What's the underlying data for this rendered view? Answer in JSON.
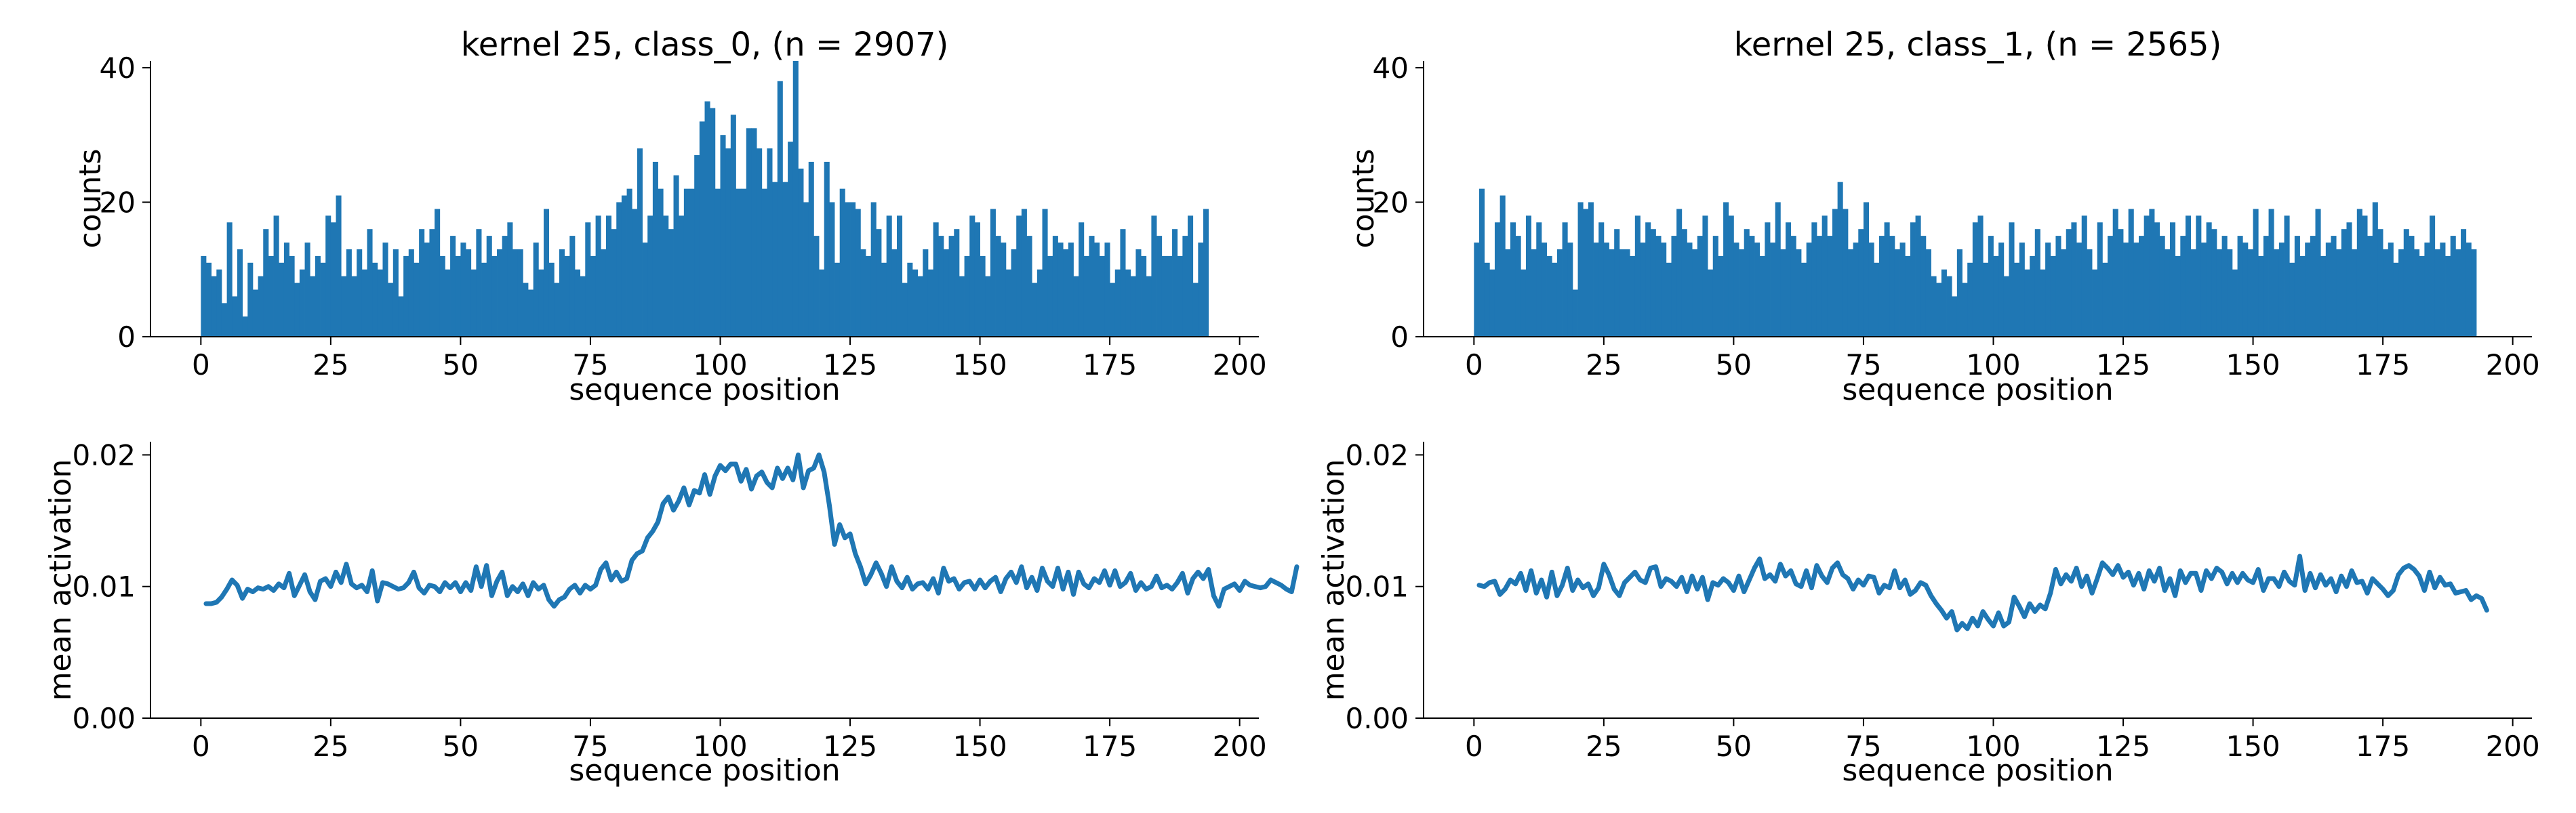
{
  "figure": {
    "colors": {
      "series": "#1f77b4",
      "axis": "#000000",
      "background": "#ffffff"
    }
  },
  "chart_data": [
    {
      "id": "hist-class0",
      "type": "bar",
      "title": "kernel 25, class_0, (n = 2907)",
      "xlabel": "sequence position",
      "ylabel": "counts",
      "xlim": [
        -9.7,
        203.7
      ],
      "ylim": [
        0,
        41
      ],
      "xticks": [
        0,
        25,
        50,
        75,
        100,
        125,
        150,
        175,
        200
      ],
      "yticks": [
        0,
        20,
        40
      ],
      "grid": false,
      "x_start": 0,
      "values": [
        12,
        11,
        9,
        10,
        5,
        17,
        6,
        13,
        3,
        11,
        7,
        9,
        16,
        12,
        18,
        11,
        14,
        12,
        8,
        10,
        14,
        9,
        12,
        11,
        18,
        17,
        21,
        9,
        13,
        9,
        13,
        10,
        16,
        11,
        10,
        14,
        8,
        13,
        6,
        12,
        13,
        11,
        16,
        14,
        16,
        19,
        12,
        10,
        15,
        12,
        14,
        13,
        10,
        16,
        11,
        15,
        12,
        13,
        15,
        17,
        13,
        13,
        8,
        7,
        14,
        10,
        19,
        11,
        8,
        13,
        12,
        15,
        10,
        9,
        17,
        12,
        18,
        13,
        18,
        16,
        20,
        21,
        22,
        19,
        28,
        14,
        18,
        26,
        22,
        18,
        16,
        24,
        18,
        22,
        22,
        27,
        32,
        35,
        34,
        22,
        30,
        28,
        33,
        22,
        22,
        31,
        31,
        28,
        22,
        28,
        23,
        38,
        23,
        29,
        41,
        25,
        20,
        26,
        15,
        10,
        26,
        20,
        11,
        22,
        20,
        20,
        19,
        13,
        12,
        20,
        16,
        11,
        18,
        13,
        18,
        8,
        11,
        10,
        9,
        13,
        10,
        17,
        15,
        13,
        15,
        16,
        9,
        12,
        18,
        17,
        12,
        9,
        19,
        15,
        14,
        10,
        13,
        18,
        19,
        15,
        8,
        10,
        19,
        12,
        15,
        14,
        13,
        14,
        9,
        17,
        12,
        15,
        14,
        12,
        14,
        8,
        10,
        16,
        10,
        9,
        13,
        12,
        9,
        18,
        15,
        12,
        12,
        16,
        12,
        15,
        18,
        8,
        14,
        19
      ]
    },
    {
      "id": "hist-class1",
      "type": "bar",
      "title": "kernel 25, class_1, (n = 2565)",
      "xlabel": "sequence position",
      "ylabel": "counts",
      "xlim": [
        -9.7,
        203.7
      ],
      "ylim": [
        0,
        41
      ],
      "xticks": [
        0,
        25,
        50,
        75,
        100,
        125,
        150,
        175,
        200
      ],
      "yticks": [
        0,
        20,
        40
      ],
      "grid": false,
      "x_start": 0,
      "values": [
        14,
        22,
        11,
        10,
        17,
        21,
        13,
        17,
        15,
        10,
        18,
        13,
        17,
        14,
        12,
        11,
        13,
        17,
        14,
        7,
        20,
        19,
        20,
        14,
        17,
        14,
        13,
        16,
        13,
        13,
        12,
        18,
        14,
        17,
        16,
        15,
        14,
        11,
        15,
        19,
        16,
        14,
        13,
        15,
        18,
        10,
        15,
        12,
        20,
        18,
        14,
        13,
        16,
        15,
        14,
        12,
        17,
        14,
        20,
        13,
        17,
        15,
        13,
        11,
        14,
        17,
        15,
        18,
        15,
        19,
        23,
        19,
        13,
        14,
        16,
        20,
        14,
        11,
        15,
        17,
        15,
        13,
        14,
        12,
        17,
        18,
        15,
        13,
        9,
        8,
        10,
        9,
        6,
        13,
        8,
        11,
        17,
        18,
        11,
        15,
        12,
        14,
        9,
        17,
        11,
        14,
        10,
        12,
        16,
        10,
        14,
        12,
        15,
        13,
        16,
        17,
        14,
        18,
        13,
        10,
        17,
        11,
        15,
        19,
        16,
        14,
        19,
        14,
        15,
        18,
        19,
        17,
        15,
        13,
        17,
        12,
        15,
        18,
        13,
        18,
        14,
        17,
        16,
        13,
        15,
        13,
        10,
        15,
        14,
        13,
        19,
        12,
        15,
        19,
        13,
        14,
        18,
        11,
        15,
        12,
        14,
        15,
        19,
        12,
        14,
        15,
        13,
        16,
        17,
        13,
        19,
        18,
        15,
        20,
        16,
        13,
        14,
        11,
        13,
        16,
        15,
        13,
        12,
        14,
        18,
        13,
        14,
        12,
        15,
        13,
        16,
        14,
        13
      ]
    },
    {
      "id": "line-class0",
      "type": "line",
      "xlabel": "sequence position",
      "ylabel": "mean activation",
      "xlim": [
        -9.7,
        203.7
      ],
      "ylim": [
        0,
        0.021
      ],
      "xticks": [
        0,
        25,
        50,
        75,
        100,
        125,
        150,
        175,
        200
      ],
      "yticks": [
        0.0,
        0.01,
        0.02
      ],
      "ytick_labels": [
        "0.00",
        "0.01",
        "0.02"
      ],
      "grid": false,
      "x_start": 1,
      "values": [
        0.0087,
        0.0087,
        0.0088,
        0.0092,
        0.0098,
        0.0105,
        0.0101,
        0.0091,
        0.0098,
        0.0096,
        0.0099,
        0.0098,
        0.01,
        0.0097,
        0.0102,
        0.0099,
        0.011,
        0.0093,
        0.0101,
        0.0109,
        0.0096,
        0.009,
        0.0104,
        0.0106,
        0.01,
        0.0111,
        0.0103,
        0.0117,
        0.0102,
        0.0099,
        0.0101,
        0.0096,
        0.0112,
        0.0089,
        0.0103,
        0.0102,
        0.01,
        0.0098,
        0.0099,
        0.0103,
        0.0111,
        0.0099,
        0.0095,
        0.0101,
        0.01,
        0.0096,
        0.0103,
        0.0099,
        0.0103,
        0.0096,
        0.0103,
        0.0097,
        0.0115,
        0.01,
        0.0116,
        0.0093,
        0.0104,
        0.0111,
        0.0093,
        0.01,
        0.0096,
        0.0102,
        0.0093,
        0.0103,
        0.0098,
        0.0101,
        0.009,
        0.0085,
        0.009,
        0.0092,
        0.0098,
        0.0101,
        0.0095,
        0.0101,
        0.0098,
        0.0101,
        0.0113,
        0.0118,
        0.0105,
        0.0111,
        0.0104,
        0.0106,
        0.012,
        0.0125,
        0.0127,
        0.0137,
        0.0142,
        0.0149,
        0.0163,
        0.0168,
        0.0158,
        0.0165,
        0.0175,
        0.0162,
        0.0173,
        0.0171,
        0.0185,
        0.017,
        0.0184,
        0.0192,
        0.0188,
        0.0193,
        0.0193,
        0.018,
        0.0189,
        0.0174,
        0.0184,
        0.0187,
        0.0179,
        0.0175,
        0.019,
        0.0182,
        0.019,
        0.0181,
        0.02,
        0.0175,
        0.0188,
        0.019,
        0.02,
        0.0187,
        0.0162,
        0.0132,
        0.0147,
        0.0137,
        0.014,
        0.0125,
        0.0115,
        0.0102,
        0.0109,
        0.0118,
        0.011,
        0.01,
        0.0115,
        0.0104,
        0.0099,
        0.0107,
        0.0098,
        0.0102,
        0.0103,
        0.0098,
        0.0106,
        0.0095,
        0.0114,
        0.0104,
        0.0106,
        0.0098,
        0.0103,
        0.0104,
        0.0098,
        0.0105,
        0.0099,
        0.0104,
        0.0107,
        0.0096,
        0.0106,
        0.0111,
        0.0103,
        0.0115,
        0.0099,
        0.0107,
        0.0097,
        0.0114,
        0.0104,
        0.01,
        0.0114,
        0.0098,
        0.0111,
        0.0094,
        0.0111,
        0.0102,
        0.0099,
        0.0106,
        0.0103,
        0.0112,
        0.0101,
        0.0112,
        0.01,
        0.0103,
        0.011,
        0.0097,
        0.0103,
        0.0098,
        0.01,
        0.0108,
        0.0099,
        0.0101,
        0.0098,
        0.0103,
        0.011,
        0.0095,
        0.0106,
        0.0111,
        0.0106,
        0.0113,
        0.0093,
        0.0085,
        0.0098,
        0.01,
        0.0102,
        0.0097,
        0.0104,
        0.0101,
        0.01,
        0.0099,
        0.01,
        0.0105,
        0.0103,
        0.0101,
        0.0098,
        0.0096,
        0.0115
      ]
    },
    {
      "id": "line-class1",
      "type": "line",
      "xlabel": "sequence position",
      "ylabel": "mean activation",
      "xlim": [
        -9.7,
        203.7
      ],
      "ylim": [
        0,
        0.021
      ],
      "xticks": [
        0,
        25,
        50,
        75,
        100,
        125,
        150,
        175,
        200
      ],
      "yticks": [
        0.0,
        0.01,
        0.02
      ],
      "ytick_labels": [
        "0.00",
        "0.01",
        "0.02"
      ],
      "grid": false,
      "x_start": 1,
      "values": [
        0.0101,
        0.01,
        0.0103,
        0.0104,
        0.0094,
        0.0098,
        0.0105,
        0.0102,
        0.011,
        0.0097,
        0.0112,
        0.0095,
        0.0105,
        0.0092,
        0.0111,
        0.0093,
        0.0101,
        0.0114,
        0.0097,
        0.0105,
        0.0099,
        0.0102,
        0.0093,
        0.0099,
        0.0117,
        0.0109,
        0.0098,
        0.0093,
        0.0103,
        0.0107,
        0.0111,
        0.0105,
        0.0103,
        0.0114,
        0.0115,
        0.01,
        0.0106,
        0.0104,
        0.01,
        0.0107,
        0.0096,
        0.0108,
        0.0098,
        0.0107,
        0.009,
        0.0103,
        0.0101,
        0.0106,
        0.0103,
        0.0097,
        0.0108,
        0.0096,
        0.0105,
        0.0114,
        0.0121,
        0.0106,
        0.0109,
        0.0104,
        0.0117,
        0.0108,
        0.0112,
        0.0102,
        0.01,
        0.0112,
        0.0099,
        0.0116,
        0.0108,
        0.0103,
        0.0114,
        0.0118,
        0.0109,
        0.0106,
        0.0098,
        0.0105,
        0.0101,
        0.0108,
        0.0107,
        0.0095,
        0.0101,
        0.0099,
        0.0112,
        0.0099,
        0.0105,
        0.0094,
        0.0097,
        0.0103,
        0.0101,
        0.0093,
        0.0087,
        0.0082,
        0.0076,
        0.0081,
        0.0067,
        0.0072,
        0.0068,
        0.0076,
        0.007,
        0.0081,
        0.0075,
        0.007,
        0.008,
        0.007,
        0.0073,
        0.0092,
        0.0085,
        0.0077,
        0.0087,
        0.0081,
        0.0086,
        0.0083,
        0.0095,
        0.0113,
        0.0102,
        0.0109,
        0.0104,
        0.0114,
        0.01,
        0.0108,
        0.0095,
        0.0106,
        0.0118,
        0.0114,
        0.0109,
        0.0116,
        0.0107,
        0.0111,
        0.0101,
        0.011,
        0.0098,
        0.0112,
        0.0104,
        0.0114,
        0.0097,
        0.0106,
        0.0093,
        0.0112,
        0.0103,
        0.011,
        0.011,
        0.0097,
        0.0112,
        0.0106,
        0.0114,
        0.0111,
        0.0102,
        0.011,
        0.0103,
        0.011,
        0.0105,
        0.0103,
        0.0113,
        0.0097,
        0.0106,
        0.0106,
        0.01,
        0.0111,
        0.0104,
        0.0101,
        0.0123,
        0.0097,
        0.011,
        0.0099,
        0.0109,
        0.0101,
        0.0106,
        0.0096,
        0.0108,
        0.01,
        0.0112,
        0.0103,
        0.0104,
        0.0095,
        0.0106,
        0.0102,
        0.0098,
        0.0093,
        0.0097,
        0.0109,
        0.0114,
        0.0116,
        0.0113,
        0.0108,
        0.0097,
        0.0111,
        0.0099,
        0.0107,
        0.0101,
        0.0102,
        0.0095,
        0.0096,
        0.0097,
        0.009,
        0.0093,
        0.0091,
        0.0082
      ]
    }
  ]
}
